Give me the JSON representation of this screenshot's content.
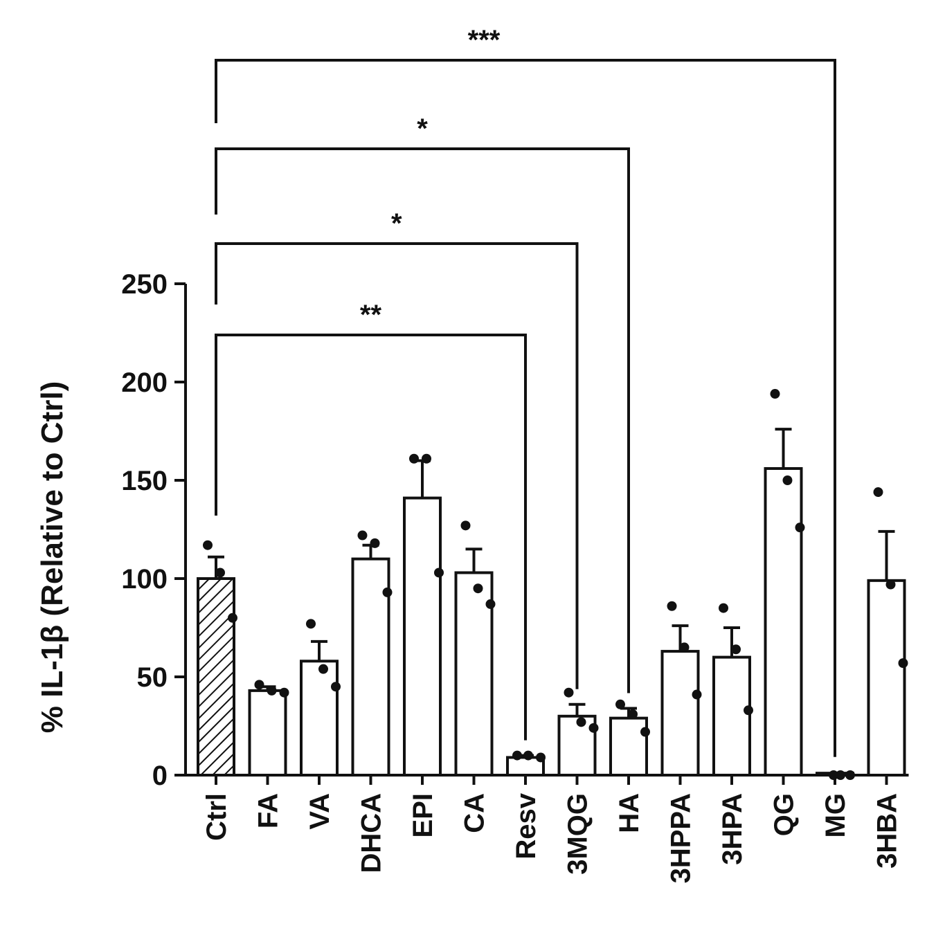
{
  "chart_data": {
    "type": "bar",
    "title": "",
    "ylabel": "% IL-1β (Relative to Ctrl)",
    "xlabel": "",
    "ylim": [
      0,
      250
    ],
    "yticks": [
      0,
      50,
      100,
      150,
      200,
      250
    ],
    "categories": [
      "Ctrl",
      "FA",
      "VA",
      "DHCA",
      "EPI",
      "CA",
      "Resv",
      "3MQG",
      "HA",
      "3HPPA",
      "3HPA",
      "QG",
      "MG",
      "3HBA"
    ],
    "values": [
      100,
      43,
      58,
      110,
      141,
      103,
      9,
      30,
      29,
      63,
      60,
      156,
      1,
      99
    ],
    "errors": [
      11,
      2,
      10,
      7,
      19,
      12,
      1,
      6,
      5,
      13,
      15,
      20,
      0.5,
      25
    ],
    "points": [
      [
        117,
        103,
        80
      ],
      [
        46,
        43,
        42
      ],
      [
        77,
        54,
        45
      ],
      [
        122,
        118,
        93
      ],
      [
        161,
        161,
        103
      ],
      [
        127,
        95,
        87
      ],
      [
        10,
        10,
        9
      ],
      [
        42,
        27,
        24
      ],
      [
        36,
        31,
        22
      ],
      [
        86,
        65,
        41
      ],
      [
        85,
        64,
        33
      ],
      [
        194,
        150,
        126
      ],
      [
        0,
        0,
        0
      ],
      [
        144,
        97,
        57
      ]
    ],
    "bar_fill": [
      "hatched",
      "white",
      "white",
      "white",
      "white",
      "white",
      "white",
      "white",
      "white",
      "white",
      "white",
      "white",
      "white",
      "white"
    ],
    "colors": {
      "bar_edge": "#111111",
      "bar_face": "#ffffff",
      "points": "#111111"
    },
    "significance": [
      {
        "from": "Ctrl",
        "to": "Resv",
        "label": "**"
      },
      {
        "from": "Ctrl",
        "to": "3MQG",
        "label": "*"
      },
      {
        "from": "Ctrl",
        "to": "HA",
        "label": "*"
      },
      {
        "from": "Ctrl",
        "to": "MG",
        "label": "***"
      }
    ],
    "grid": false,
    "legend": "none"
  }
}
